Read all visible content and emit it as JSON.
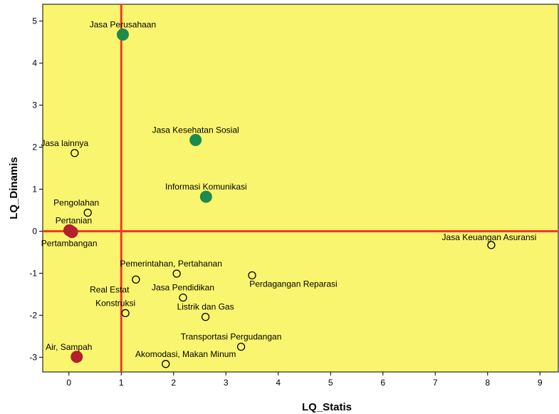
{
  "chart_data": {
    "type": "scatter",
    "title": "",
    "xlabel": "LQ_Statis",
    "ylabel": "LQ_Dinamis",
    "xlim": [
      -0.5,
      9.35
    ],
    "ylim": [
      -3.35,
      5.4
    ],
    "x_ticks": [
      "0",
      "1",
      "2",
      "3",
      "4",
      "5",
      "6",
      "7",
      "8",
      "9"
    ],
    "y_ticks": [
      "-3",
      "-2",
      "-1",
      "0",
      "1",
      "2",
      "3",
      "4",
      "5"
    ],
    "grid": false,
    "background_color": "#faf56f",
    "reference_lines": {
      "x": 1,
      "y": 0,
      "color": "#f0392b"
    },
    "points": [
      {
        "label": "Jasa Perusahaan",
        "x": 1.03,
        "y": 4.68,
        "marker": "filled",
        "color": "#1e8a4c"
      },
      {
        "label": "Jasa Kesehatan Sosial",
        "x": 2.42,
        "y": 2.17,
        "marker": "filled",
        "color": "#1e8a4c"
      },
      {
        "label": "Informasi Komunikasi",
        "x": 2.62,
        "y": 0.82,
        "marker": "filled",
        "color": "#1e8a4c"
      },
      {
        "label": "Jasa lainnya",
        "x": 0.11,
        "y": 1.86,
        "marker": "hollow",
        "color": "#000000"
      },
      {
        "label": "Pengolahan",
        "x": 0.36,
        "y": 0.44,
        "marker": "hollow",
        "color": "#000000"
      },
      {
        "label": "Pertanian",
        "x": 0.01,
        "y": 0.02,
        "marker": "filled",
        "color": "#b3212b"
      },
      {
        "label": "Pertambangan",
        "x": 0.06,
        "y": -0.02,
        "marker": "filled",
        "color": "#b3212b"
      },
      {
        "label": "Jasa Keuangan Asuransi",
        "x": 8.07,
        "y": -0.33,
        "marker": "hollow",
        "color": "#000000"
      },
      {
        "label": "Pemerintahan, Pertahanan",
        "x": 2.06,
        "y": -1.01,
        "marker": "hollow",
        "color": "#000000"
      },
      {
        "label": "Perdagangan Reparasi",
        "x": 3.5,
        "y": -1.05,
        "marker": "hollow",
        "color": "#000000"
      },
      {
        "label": "Real Estat",
        "x": 1.28,
        "y": -1.15,
        "marker": "hollow",
        "color": "#000000"
      },
      {
        "label": "Jasa Pendidikan",
        "x": 2.18,
        "y": -1.58,
        "marker": "hollow",
        "color": "#000000"
      },
      {
        "label": "Konstruksi",
        "x": 1.08,
        "y": -1.95,
        "marker": "hollow",
        "color": "#000000"
      },
      {
        "label": "Listrik dan Gas",
        "x": 2.61,
        "y": -2.04,
        "marker": "hollow",
        "color": "#000000"
      },
      {
        "label": "Transportasi Pergudangan",
        "x": 3.29,
        "y": -2.75,
        "marker": "hollow",
        "color": "#000000"
      },
      {
        "label": "Air, Sampah",
        "x": 0.15,
        "y": -2.99,
        "marker": "filled",
        "color": "#b3212b"
      },
      {
        "label": "Akomodasi, Makan Minum",
        "x": 1.85,
        "y": -3.16,
        "marker": "hollow",
        "color": "#000000"
      }
    ]
  }
}
